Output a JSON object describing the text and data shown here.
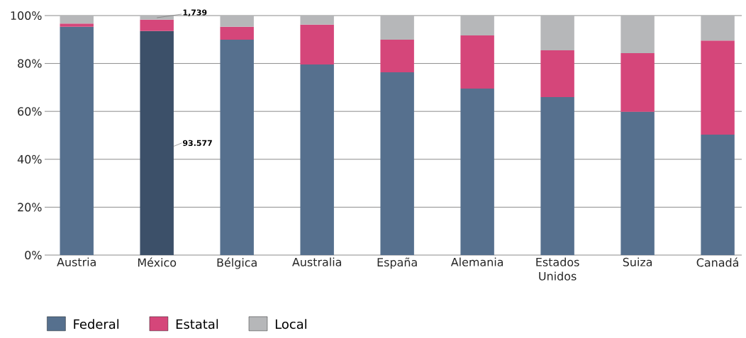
{
  "chart_data": {
    "type": "bar",
    "stacked": true,
    "categories": [
      "Austria",
      "México",
      "Bélgica",
      "Australia",
      "España",
      "Alemania",
      "Estados Unidos",
      "Suiza",
      "Canadá"
    ],
    "series": [
      {
        "name": "Federal",
        "color": "#56708e",
        "colors": [
          "#56708e",
          "#3c5069",
          "#56708e",
          "#56708e",
          "#56708e",
          "#56708e",
          "#56708e",
          "#56708e",
          "#56708e"
        ],
        "values": [
          95.3,
          93.577,
          89.9,
          79.6,
          76.3,
          69.5,
          66.0,
          59.8,
          50.3
        ],
        "value_labels": [
          null,
          "93.577",
          null,
          null,
          null,
          null,
          null,
          null,
          null
        ]
      },
      {
        "name": "Estatal",
        "color": "#d5467a",
        "values": [
          1.4,
          4.7,
          5.4,
          16.6,
          13.6,
          22.2,
          19.5,
          24.5,
          39.3
        ]
      },
      {
        "name": "Local",
        "color": "#b6b7b9",
        "values": [
          3.3,
          1.739,
          4.7,
          3.8,
          10.1,
          8.3,
          14.5,
          15.7,
          10.4
        ]
      }
    ],
    "annotations": [
      {
        "text": "1,739",
        "x": "México",
        "y": 99.1
      }
    ],
    "ylim": [
      0,
      100
    ],
    "yticks": [
      {
        "value": 0,
        "label": "0%"
      },
      {
        "value": 20,
        "label": "20%"
      },
      {
        "value": 40,
        "label": "40%"
      },
      {
        "value": 60,
        "label": "60%"
      },
      {
        "value": 80,
        "label": "80%"
      },
      {
        "value": 100,
        "label": "100%"
      }
    ],
    "grid": "y",
    "legend": "bottom left"
  }
}
